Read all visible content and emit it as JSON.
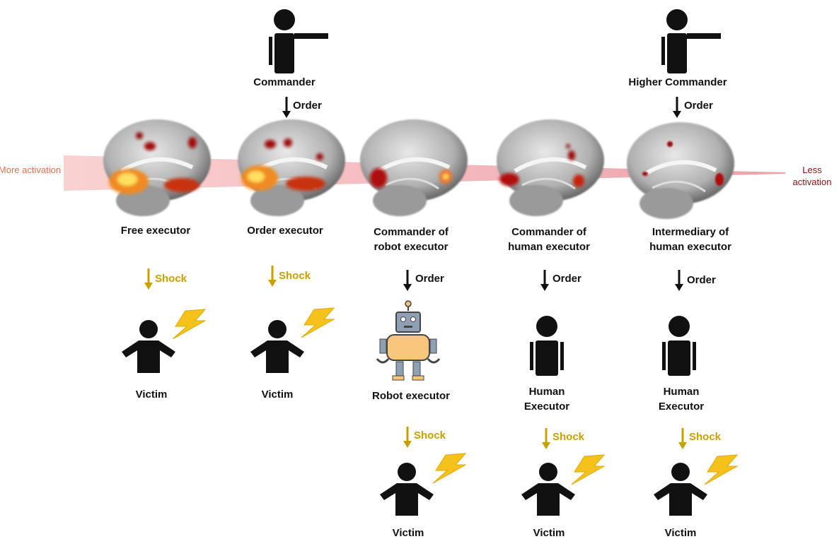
{
  "scale": {
    "more": "More activation",
    "less": "Less activation"
  },
  "commanders": [
    {
      "label": "Commander",
      "order": "Order"
    },
    {
      "label": "Higher Commander",
      "order": "Order"
    }
  ],
  "columns": [
    {
      "brain_label": "Free executor",
      "arrow": "Shock",
      "target": "Victim"
    },
    {
      "brain_label": "Order executor",
      "arrow": "Shock",
      "target": "Victim"
    },
    {
      "brain_label": "Commander of robot executor",
      "arrow": "Order",
      "target": "Robot executor",
      "next_arrow": "Shock",
      "next_target": "Victim"
    },
    {
      "brain_label": "Commander of human executor",
      "arrow": "Order",
      "target": "Human Executor",
      "next_arrow": "Shock",
      "next_target": "Victim"
    },
    {
      "brain_label": "Intermediary of human executor",
      "arrow": "Order",
      "target": "Human Executor",
      "next_arrow": "Shock",
      "next_target": "Victim"
    }
  ]
}
